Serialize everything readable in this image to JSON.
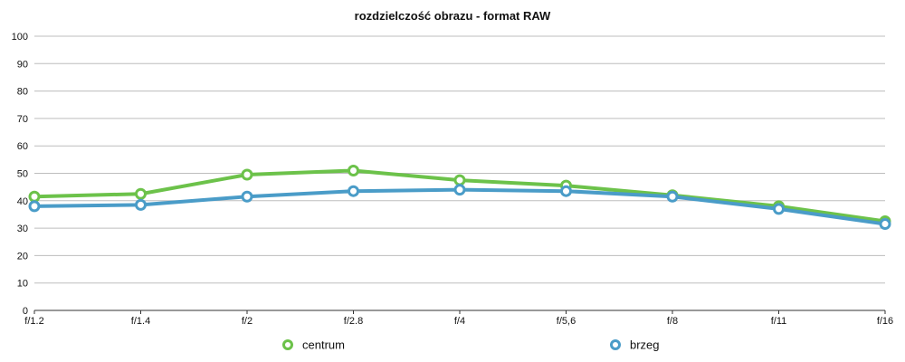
{
  "chart_data": {
    "type": "line",
    "title": "rozdzielczość obrazu - format RAW",
    "xlabel": "",
    "ylabel": "",
    "categories": [
      "f/1.2",
      "f/1.4",
      "f/2",
      "f/2.8",
      "f/4",
      "f/5,6",
      "f/8",
      "f/11",
      "f/16"
    ],
    "yticks": [
      0,
      10,
      20,
      30,
      40,
      50,
      60,
      70,
      80,
      90,
      100
    ],
    "ylim": [
      0,
      100
    ],
    "grid": "horizontal",
    "legend": "bottom",
    "series": [
      {
        "name": "centrum",
        "color": "#6cc24a",
        "values": [
          41.5,
          42.5,
          49.5,
          51,
          47.5,
          45.5,
          42,
          38,
          32.5
        ]
      },
      {
        "name": "brzeg",
        "color": "#4a9cc8",
        "values": [
          38,
          38.5,
          41.5,
          43.5,
          44,
          43.5,
          41.5,
          37,
          31.5
        ]
      }
    ]
  }
}
